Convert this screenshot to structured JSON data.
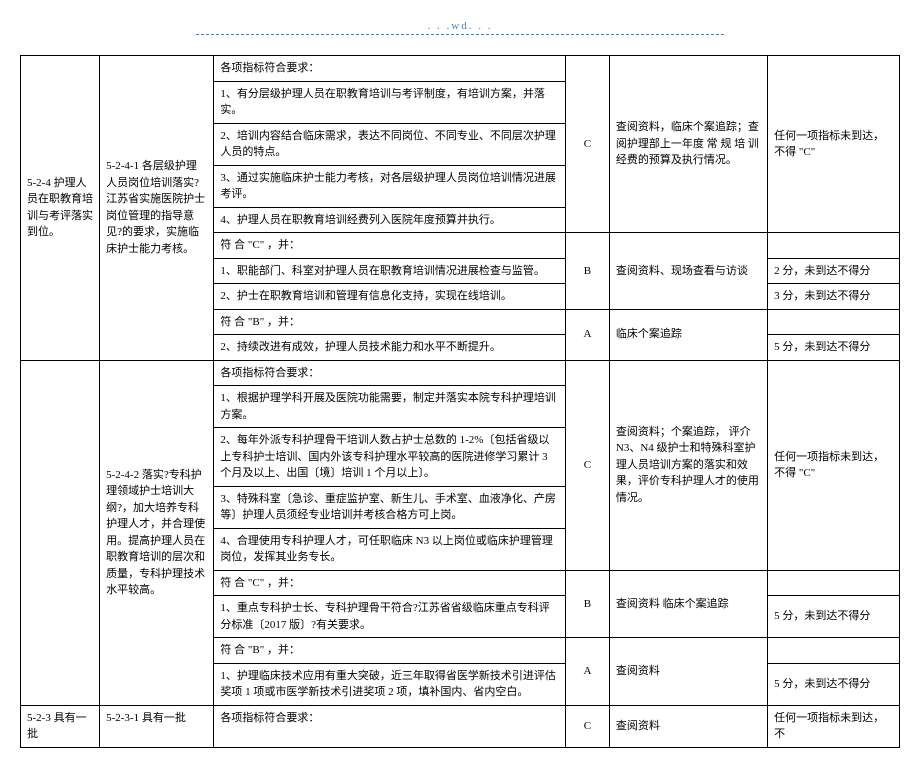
{
  "header": ". . .wd. . .",
  "rows": {
    "r1c1": "5-2-4 护理人员在职教育培训与考评落实到位。",
    "r1c2": "5-2-4-1 各层级护理人员岗位培训落实?江苏省实施医院护士岗位管理的指导意见?的要求，实施临床护士能力考核。",
    "r1c3": "各项指标符合要求：",
    "r1c4": "C",
    "r1c5": "查阅资料，临床个案追踪；查阅护理部上一年度 常 规 培 训 经费的预算及执行情况。",
    "r1c6": "任何一项指标未到达，不得 \"C\"",
    "r2c3": "1、有分层级护理人员在职教育培训与考评制度，有培训方案，并落实。",
    "r3c3": "2、培训内容结合临床需求，表达不同岗位、不同专业、不同层次护理人员的特点。",
    "r4c3": "3、通过实施临床护士能力考核，对各层级护理人员岗位培训情况进展考评。",
    "r5c3": "4、护理人员在职教育培训经费列入医院年度预算并执行。",
    "r6c3": "符 合 \"C\" ，并：",
    "r6c4": "B",
    "r6c5": "查阅资料、现场查看与访谈",
    "r7c3": "1、职能部门、科室对护理人员在职教育培训情况进展检查与监管。",
    "r7c6": "2 分，未到达不得分",
    "r8c3": "2、护士在职教育培训和管理有信息化支持，实现在线培训。",
    "r8c6": "3 分，未到达不得分",
    "r9c3": "符 合 \"B\" ，并：",
    "r9c4": "A",
    "r9c5": "临床个案追踪",
    "r10c3": "2、持续改进有成效，护理人员技术能力和水平不断提升。",
    "r10c6": "5 分，未到达不得分",
    "r11c2": "5-2-4-2 落实?专科护理领域护士培训大纲?，加大培养专科护理人才，并合理使用。提高护理人员在职教育培训的层次和质量，专科护理技术水平较高。",
    "r11c3": "各项指标符合要求：",
    "r11c4": "C",
    "r11c5": "查阅资料；个案追踪， 评介 N3、N4 级护士和特殊科室护理人员培训方案的落实和效果，评价专科护理人才的使用情况。",
    "r11c6": "任何一项指标未到达，不得 \"C\"",
    "r12c3": "1、根据护理学科开展及医院功能需要，制定并落实本院专科护理培训方案。",
    "r13c3": "2、每年外派专科护理骨干培训人数占护士总数的 1-2%〔包括省级以上专科护士培训、国内外该专科护理水平较高的医院进修学习累计 3 个月及以上、出国〔境〕培训 1 个月以上〕。",
    "r14c3": "3、特殊科室〔急诊、重症监护室、新生儿、手术室、血液净化、产房等〕护理人员须经专业培训并考核合格方可上岗。",
    "r15c3": "4、合理使用专科护理人才，可任职临床 N3 以上岗位或临床护理管理岗位，发挥其业务专长。",
    "r16c3": "符 合 \"C\" ，并：",
    "r16c4": "B",
    "r16c5": "查阅资料\n临床个案追踪",
    "r17c3": "1、重点专科护士长、专科护理骨干符合?江苏省省级临床重点专科评分标准〔2017 版〕?有关要求。",
    "r17c6": "5 分，未到达不得分",
    "r18c3": "符 合 \"B\" ，并：",
    "r18c4": "A",
    "r18c5": "查阅资料",
    "r19c3": "1、护理临床技术应用有重大突破，近三年取得省医学新技术引进评估奖项 1 项或市医学新技术引进奖项 2 项，填补国内、省内空白。",
    "r19c6": "5 分，未到达不得分",
    "r20c1": "5-2-3 具有一批",
    "r20c2": "5-2-3-1 具有一批",
    "r20c3": "各项指标符合要求：",
    "r20c4": "C",
    "r20c5": "查阅资料",
    "r20c6": "任何一项指标未到达，不"
  }
}
